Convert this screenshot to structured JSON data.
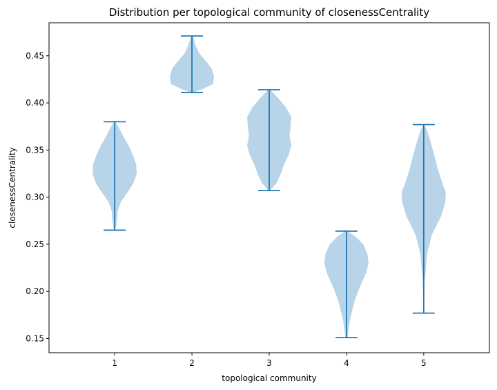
{
  "chart_data": {
    "type": "violin",
    "title": "Distribution per topological community of closenessCentrality",
    "xlabel": "topological community",
    "ylabel": "closenessCentrality",
    "ylim": [
      0.135,
      0.485
    ],
    "yticks": [
      "0.15",
      "0.20",
      "0.25",
      "0.30",
      "0.35",
      "0.40",
      "0.45"
    ],
    "categories": [
      "1",
      "2",
      "3",
      "4",
      "5"
    ],
    "series": [
      {
        "category": "1",
        "min": 0.265,
        "max": 0.38,
        "density": [
          [
            0.265,
            0.3
          ],
          [
            0.275,
            1.0
          ],
          [
            0.285,
            1.3
          ],
          [
            0.295,
            2.8
          ],
          [
            0.305,
            5.8
          ],
          [
            0.315,
            8.5
          ],
          [
            0.325,
            10.0
          ],
          [
            0.335,
            9.7
          ],
          [
            0.345,
            8.2
          ],
          [
            0.355,
            6.2
          ],
          [
            0.365,
            3.8
          ],
          [
            0.375,
            1.6
          ],
          [
            0.38,
            0.3
          ]
        ]
      },
      {
        "category": "2",
        "min": 0.411,
        "max": 0.471,
        "density": [
          [
            0.411,
            0.5
          ],
          [
            0.415,
            5.0
          ],
          [
            0.42,
            9.5
          ],
          [
            0.428,
            10.0
          ],
          [
            0.436,
            9.0
          ],
          [
            0.444,
            6.5
          ],
          [
            0.452,
            3.5
          ],
          [
            0.46,
            1.8
          ],
          [
            0.466,
            1.0
          ],
          [
            0.471,
            0.3
          ]
        ]
      },
      {
        "category": "3",
        "min": 0.307,
        "max": 0.414,
        "density": [
          [
            0.307,
            0.3
          ],
          [
            0.315,
            2.8
          ],
          [
            0.325,
            4.5
          ],
          [
            0.335,
            5.8
          ],
          [
            0.345,
            7.5
          ],
          [
            0.355,
            8.5
          ],
          [
            0.365,
            7.8
          ],
          [
            0.375,
            8.2
          ],
          [
            0.385,
            8.5
          ],
          [
            0.395,
            6.5
          ],
          [
            0.405,
            3.5
          ],
          [
            0.414,
            0.4
          ]
        ]
      },
      {
        "category": "4",
        "min": 0.151,
        "max": 0.264,
        "density": [
          [
            0.151,
            0.5
          ],
          [
            0.16,
            0.9
          ],
          [
            0.17,
            1.5
          ],
          [
            0.18,
            2.5
          ],
          [
            0.19,
            3.5
          ],
          [
            0.2,
            5.0
          ],
          [
            0.21,
            6.7
          ],
          [
            0.22,
            8.5
          ],
          [
            0.23,
            9.5
          ],
          [
            0.24,
            9.0
          ],
          [
            0.25,
            7.2
          ],
          [
            0.258,
            4.0
          ],
          [
            0.264,
            0.5
          ]
        ]
      },
      {
        "category": "5",
        "min": 0.177,
        "max": 0.377,
        "density": [
          [
            0.177,
            0.1
          ],
          [
            0.21,
            0.4
          ],
          [
            0.24,
            1.5
          ],
          [
            0.26,
            3.5
          ],
          [
            0.28,
            7.5
          ],
          [
            0.295,
            9.3
          ],
          [
            0.305,
            9.5
          ],
          [
            0.315,
            8.0
          ],
          [
            0.33,
            6.0
          ],
          [
            0.345,
            4.5
          ],
          [
            0.36,
            2.8
          ],
          [
            0.37,
            1.5
          ],
          [
            0.377,
            0.2
          ]
        ]
      }
    ],
    "violin_fill": "#b8d4e8",
    "line_color": "#1f77b4",
    "grid": false,
    "legend": "none"
  }
}
